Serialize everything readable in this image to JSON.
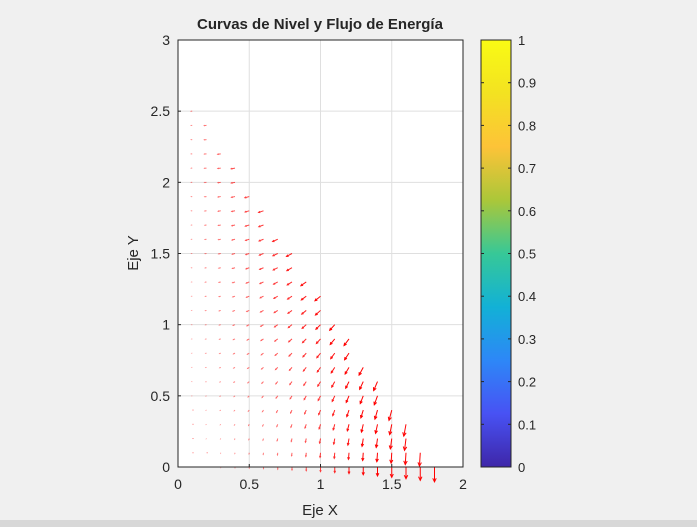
{
  "chart_data": {
    "type": "quiver",
    "title": "Curvas de Nivel y Flujo de Energía",
    "xlabel": "Eje X",
    "ylabel": "Eje Y",
    "xlim": [
      0,
      2
    ],
    "ylim": [
      0,
      3
    ],
    "xticks": [
      "0",
      "0.5",
      "1",
      "1.5",
      "2"
    ],
    "yticks": [
      "0",
      "0.5",
      "1",
      "1.5",
      "2",
      "2.5",
      "3"
    ],
    "grid": true,
    "field": {
      "u": "-x*y",
      "v": "-x^2",
      "x_start": 0.1,
      "x_step": 0.1,
      "y_start": 0,
      "y_step": 0.1,
      "domain": "3x + 2y <= 5.45"
    },
    "arrow_color": "#ff0000",
    "colorbar": {
      "limits": [
        0,
        1
      ],
      "ticks": [
        "0",
        "0.1",
        "0.2",
        "0.3",
        "0.4",
        "0.5",
        "0.6",
        "0.7",
        "0.8",
        "0.9",
        "1"
      ],
      "colormap": "parula"
    }
  }
}
